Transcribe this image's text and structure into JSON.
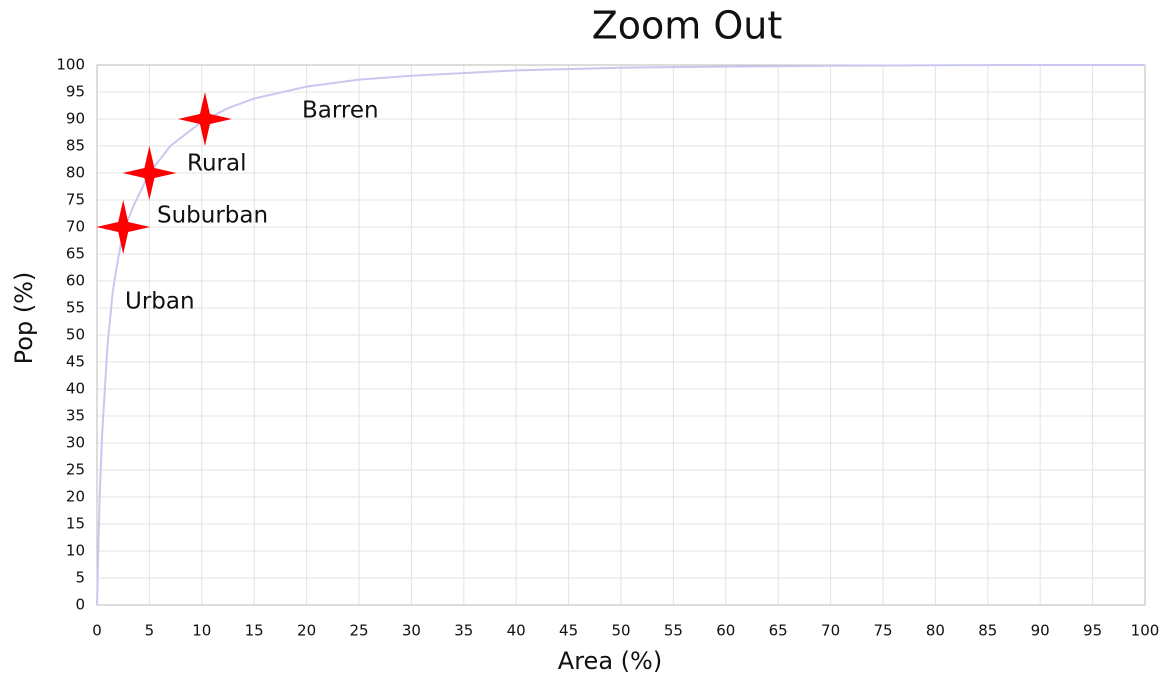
{
  "chart_data": {
    "type": "line",
    "title": "Zoom Out",
    "xlabel": "Area (%)",
    "ylabel": "Pop (%)",
    "x": [
      0,
      0.25,
      0.5,
      1,
      1.5,
      2,
      2.5,
      3.5,
      5,
      7,
      10,
      12.5,
      15,
      20,
      25,
      30,
      40,
      50,
      60,
      70,
      80,
      90,
      100
    ],
    "values": [
      0,
      20,
      32,
      48,
      58,
      64,
      69,
      74,
      80,
      85,
      89.5,
      92,
      93.8,
      96,
      97.3,
      98,
      99,
      99.5,
      99.7,
      99.85,
      99.95,
      100,
      100
    ],
    "color": "#c8c8f0",
    "markers": {
      "x": [
        2.5,
        5,
        10.3
      ],
      "y": [
        70,
        80,
        90
      ],
      "color": "#ff0000"
    },
    "annotations": [
      "Urban",
      "Suburban",
      "Rural",
      "Barren"
    ],
    "xlim": [
      0,
      100
    ],
    "ylim": [
      0,
      100
    ],
    "xticks": [
      0,
      5,
      10,
      15,
      20,
      25,
      30,
      35,
      40,
      45,
      50,
      55,
      60,
      65,
      70,
      75,
      80,
      85,
      90,
      95,
      100
    ],
    "yticks": [
      0,
      5,
      10,
      15,
      20,
      25,
      30,
      35,
      40,
      45,
      50,
      55,
      60,
      65,
      70,
      75,
      80,
      85,
      90,
      95,
      100
    ],
    "grid": true
  }
}
